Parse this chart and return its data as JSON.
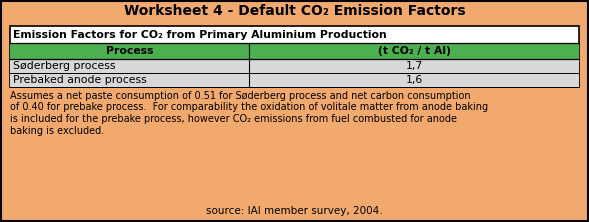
{
  "title": "Worksheet 4 - Default CO₂ Emission Factors",
  "table_header": "Emission Factors for CO₂ from Primary Aluminium Production",
  "col1_header": "Process",
  "col2_header": "(t CO₂ / t Al)",
  "rows": [
    [
      "Søderberg process",
      "1,7"
    ],
    [
      "Prebaked anode process",
      "1,6"
    ]
  ],
  "footnote_lines": [
    "Assumes a net paste consumption of 0.51 for Søderberg process and net carbon consumption",
    "of 0.40 for prebake process.  For comparability the oxidation of volitale matter from anode baking",
    "is included for the prebake process, however CO₂ emissions from fuel combusted for anode",
    "baking is excluded."
  ],
  "source": "source: IAI member survey, 2004.",
  "bg_color": "#F2A96E",
  "table_bg": "#FFFFFF",
  "col_header_bg": "#4CAF50",
  "data_row_bg": "#D8D8D8",
  "title_fontsize": 10,
  "header_fontsize": 7.8,
  "col_header_fontsize": 7.8,
  "data_fontsize": 7.8,
  "footnote_fontsize": 7.0,
  "source_fontsize": 7.5,
  "col_split": 0.42
}
